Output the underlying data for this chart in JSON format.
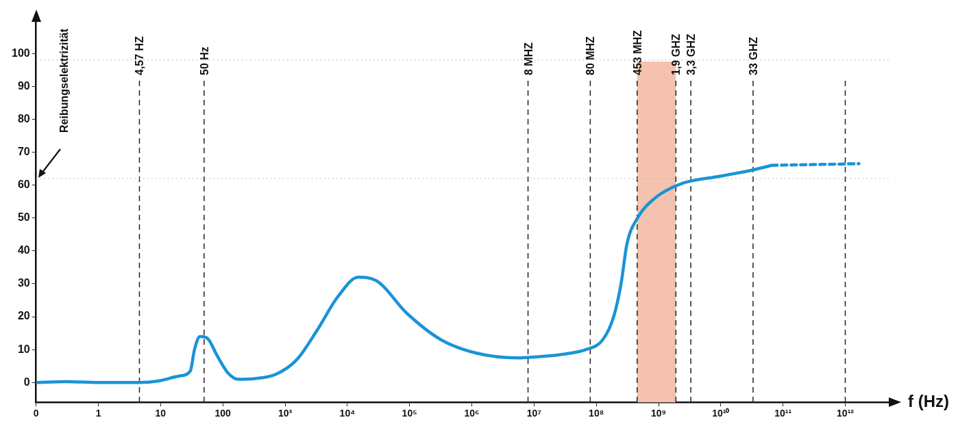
{
  "chart_data": {
    "type": "line",
    "xlabel": "f (Hz)",
    "marker": "none",
    "grid": false,
    "legend": false,
    "log": "x",
    "xlim": [
      0.1,
      5000000000000
    ],
    "xticks": [
      {
        "value": 0.1,
        "label": "0"
      },
      1,
      10,
      100,
      {
        "value": 1000,
        "label": "10³"
      },
      {
        "value": 10000,
        "label": "10⁴"
      },
      {
        "value": 100000,
        "label": "10⁵"
      },
      {
        "value": 1000000,
        "label": "10⁶"
      },
      {
        "value": 10000000,
        "label": "10⁷"
      },
      {
        "value": 100000000,
        "label": "10⁸"
      },
      {
        "value": 1000000000,
        "label": "10⁹"
      },
      {
        "value": 10000000000,
        "label": "10¹⁰"
      },
      {
        "value": 100000000000,
        "label": "10¹¹"
      },
      {
        "value": 1000000000000,
        "label": "10¹²"
      }
    ],
    "ylim": [
      -6,
      110
    ],
    "yticks": [
      0,
      10,
      20,
      30,
      40,
      50,
      60,
      70,
      80,
      90,
      100
    ],
    "series": [
      {
        "color": "#1a94d6",
        "line_style": "solid",
        "x": [
          0.1,
          0.3,
          1,
          4.57,
          9.3,
          20,
          30,
          35,
          43,
          56,
          82,
          120,
          177,
          330,
          710,
          1550,
          3300,
          7000,
          15000,
          29000,
          91000,
          320000,
          1150000,
          5400000,
          15000000,
          32000000,
          68000000,
          127000000,
          190000000,
          250000000,
          310000000,
          460000000,
          870000000,
          2400000000,
          8500000000,
          31000000000,
          66000000000
        ],
        "values": [
          0,
          0.3,
          0,
          0,
          0.5,
          2,
          3.5,
          10,
          14,
          13.5,
          8,
          3,
          1,
          1.2,
          2.5,
          7,
          16,
          26,
          32,
          31,
          21,
          13,
          9,
          7.5,
          8,
          8.7,
          10,
          13,
          20,
          30,
          42,
          50,
          56,
          60.5,
          62.5,
          64.5,
          66
        ]
      },
      {
        "color": "#1a94d6",
        "line_style": "dashed",
        "x": [
          66000000000,
          1660000000000
        ],
        "values": [
          66,
          66.5
        ]
      }
    ],
    "ref_lines": [
      {
        "axis": "x",
        "value": 4.57,
        "label": "4,57 HZ",
        "color": "#222222",
        "line_style": "dashed"
      },
      {
        "axis": "x",
        "value": 50,
        "label": "50 Hz",
        "color": "#222222",
        "line_style": "dashed"
      },
      {
        "axis": "x",
        "value": 8000000,
        "label": "8 MHZ",
        "color": "#222222",
        "line_style": "dashed"
      },
      {
        "axis": "x",
        "value": 80000000,
        "label": "80 MHZ",
        "color": "#222222",
        "line_style": "dashed"
      },
      {
        "axis": "x",
        "value": 453000000,
        "label": "453 MHZ",
        "color": "#222222",
        "line_style": "dashed"
      },
      {
        "axis": "x",
        "value": 1900000000,
        "label": "1,9 GHZ",
        "color": "#222222",
        "line_style": "dashed"
      },
      {
        "axis": "x",
        "value": 3300000000,
        "label": "3,3 GHZ",
        "color": "#222222",
        "line_style": "dashed"
      },
      {
        "axis": "x",
        "value": 33000000000,
        "label": "33 GHZ",
        "color": "#222222",
        "line_style": "dashed"
      },
      {
        "axis": "x",
        "value": 1000000000000,
        "color": "#222222",
        "line_style": "dashed"
      },
      {
        "axis": "y",
        "value": 98,
        "color": "#bbbbbb",
        "line_style": "dotted"
      },
      {
        "axis": "y",
        "value": 62,
        "color": "#bbbbbb",
        "line_style": "dotted"
      }
    ],
    "bands": [
      {
        "axis": "x",
        "from": 453000000,
        "to": 1900000000,
        "color": "#f4c2ae"
      }
    ],
    "annotations": [
      "Reibungselektrizität"
    ]
  }
}
